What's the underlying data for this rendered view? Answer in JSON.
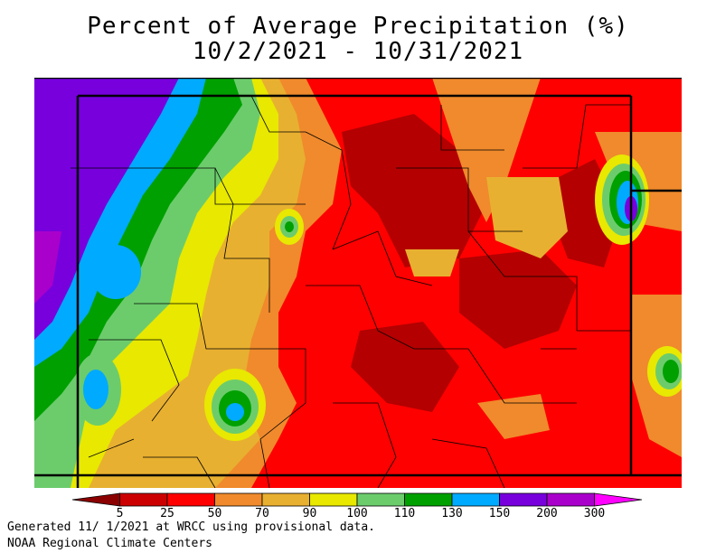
{
  "title": {
    "line1": "Percent of Average Precipitation (%)",
    "line2": "10/2/2021 - 10/31/2021"
  },
  "legend": {
    "ticks": [
      "5",
      "25",
      "50",
      "70",
      "90",
      "100",
      "110",
      "130",
      "150",
      "200",
      "300"
    ],
    "colors": [
      "#8b0000",
      "#cc0000",
      "#ff0000",
      "#f08a2c",
      "#e8b030",
      "#e8e800",
      "#6ccc6c",
      "#00a000",
      "#00aaff",
      "#7700dd",
      "#aa00cc",
      "#ff00ff"
    ]
  },
  "footer": {
    "line1": "Generated 11/ 1/2021 at WRCC using provisional data.",
    "line2": "NOAA Regional Climate Centers"
  },
  "map": {
    "palette": {
      "dark_red": "#b40000",
      "red": "#ff0000",
      "orange": "#f08a2c",
      "light_orange": "#e8b030",
      "yellow": "#e8e800",
      "light_green": "#6ccc6c",
      "green": "#00a000",
      "blue": "#00aaff",
      "purple": "#7700dd",
      "magenta": "#aa00cc"
    }
  }
}
